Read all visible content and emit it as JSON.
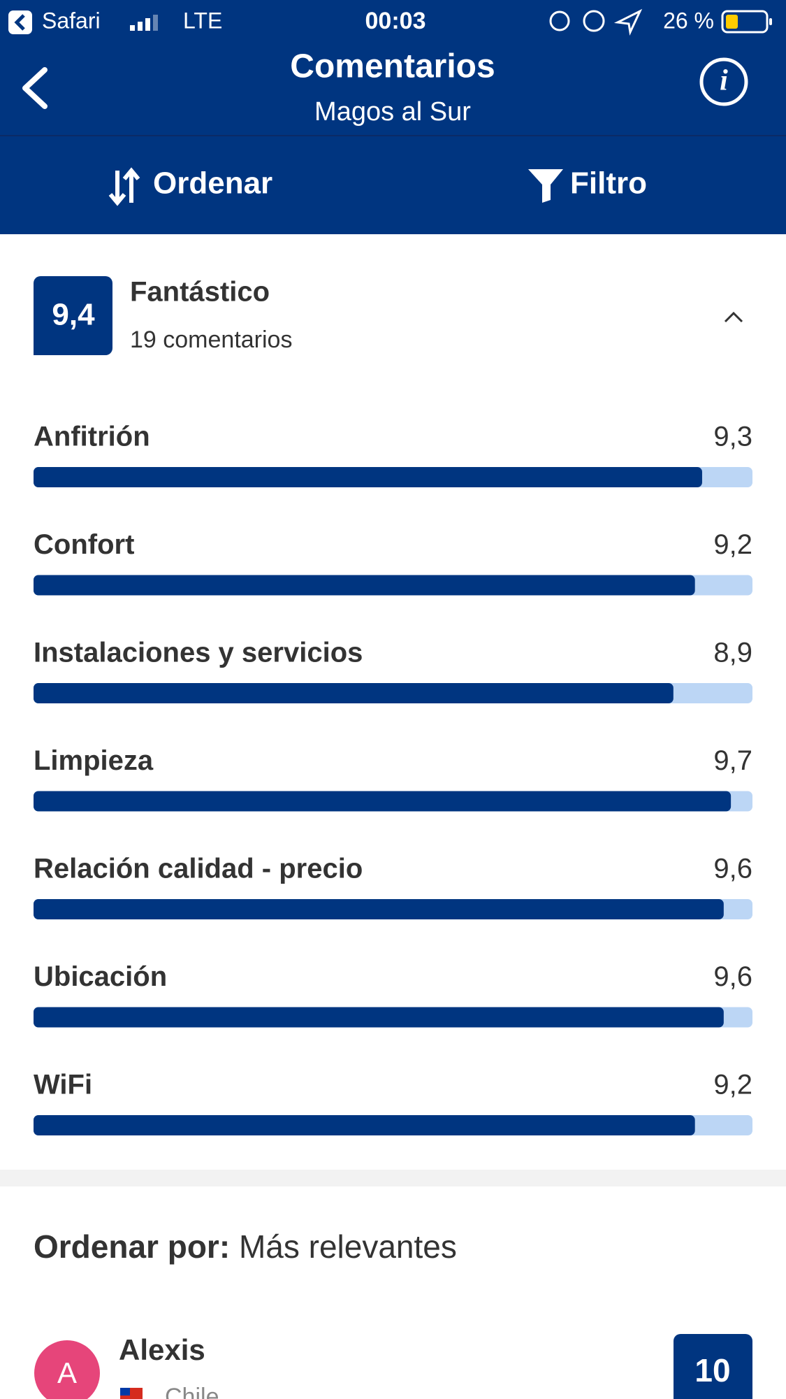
{
  "status_bar": {
    "app": "Safari",
    "network": "LTE",
    "time": "00:03",
    "battery": "26 %"
  },
  "header": {
    "title": "Comentarios",
    "subtitle": "Magos al Sur"
  },
  "toolbar": {
    "sort": "Ordenar",
    "filter": "Filtro"
  },
  "summary": {
    "score": "9,4",
    "verdict": "Fantástico",
    "count": "19 comentarios"
  },
  "ratings": {
    "xlim": [
      0,
      10
    ],
    "items": [
      {
        "label": "Anfitrión",
        "value": 9.3,
        "value_label": "9,3"
      },
      {
        "label": "Confort",
        "value": 9.2,
        "value_label": "9,2"
      },
      {
        "label": "Instalaciones y servicios",
        "value": 8.9,
        "value_label": "8,9"
      },
      {
        "label": "Limpieza",
        "value": 9.7,
        "value_label": "9,7"
      },
      {
        "label": "Relación calidad - precio",
        "value": 9.6,
        "value_label": "9,6"
      },
      {
        "label": "Ubicación",
        "value": 9.6,
        "value_label": "9,6"
      },
      {
        "label": "WiFi",
        "value": 9.2,
        "value_label": "9,2"
      }
    ]
  },
  "sort_line": {
    "label": "Ordenar por:",
    "value": "Más relevantes"
  },
  "review": {
    "initial": "A",
    "name": "Alexis",
    "country": "Chile",
    "score": "10"
  }
}
